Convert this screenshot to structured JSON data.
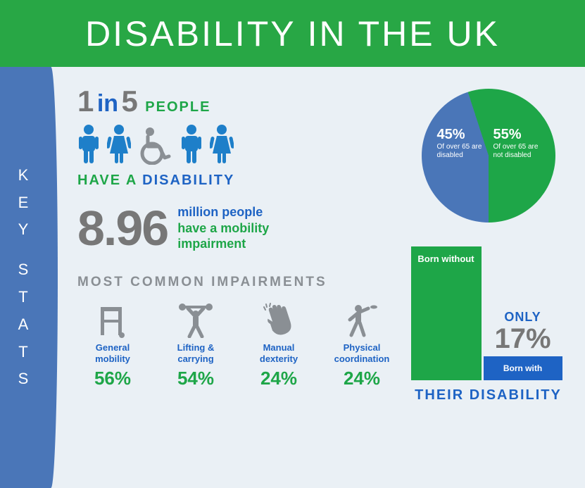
{
  "header": {
    "title": "DISABILITY IN THE UK",
    "bg_color": "#28a745",
    "text_color": "#ffffff",
    "fontsize": 50
  },
  "sidebar": {
    "label": "KEY STATS",
    "letters": [
      "K",
      "E",
      "Y",
      "",
      "S",
      "T",
      "A",
      "T",
      "S"
    ],
    "bg_color": "#4a76b8",
    "text_color": "#ffffff"
  },
  "body_bg": "#eaf0f5",
  "one_in_five": {
    "one": "1",
    "in": "in",
    "five": "5",
    "people": "PEOPLE",
    "have_a": "HAVE A",
    "disability": "DISABILITY",
    "colors": {
      "num": "#777777",
      "in": "#1e63c4",
      "green": "#1ea648",
      "blue": "#1e63c4"
    },
    "icons": [
      {
        "type": "male",
        "color": "#1e7fc9"
      },
      {
        "type": "female",
        "color": "#1e7fc9"
      },
      {
        "type": "wheelchair",
        "color": "#8a8f94"
      },
      {
        "type": "male",
        "color": "#1e7fc9"
      },
      {
        "type": "female",
        "color": "#1e7fc9"
      }
    ]
  },
  "mobility": {
    "number": "8.96",
    "line1": "million people",
    "line2": "have a mobility",
    "line3": "impairment",
    "number_color": "#777777",
    "blue": "#1e63c4",
    "green": "#1ea648",
    "number_fontsize": 70
  },
  "impairments": {
    "title": "MOST COMMON IMPAIRMENTS",
    "title_color": "#8a8f94",
    "label_color": "#1e63c4",
    "pct_color": "#1ea648",
    "icon_color": "#8a8f94",
    "items": [
      {
        "icon": "walker",
        "label": "General mobility",
        "pct": "56%"
      },
      {
        "icon": "lifting",
        "label": "Lifting & carrying",
        "pct": "54%"
      },
      {
        "icon": "hand",
        "label": "Manual dexterity",
        "pct": "24%"
      },
      {
        "icon": "throw",
        "label": "Physical coordination",
        "pct": "24%"
      }
    ]
  },
  "pie": {
    "type": "pie",
    "slices": [
      {
        "pct": 45,
        "label_pct": "45%",
        "label_text": "Of over 65 are disabled",
        "color": "#4a76b8"
      },
      {
        "pct": 55,
        "label_pct": "55%",
        "label_text": "Of over 65 are not disabled",
        "color": "#1ea648"
      }
    ],
    "diameter": 190
  },
  "born": {
    "type": "bar",
    "without": {
      "label": "Born without",
      "value": 83,
      "color": "#1ea648",
      "height": 190
    },
    "with": {
      "label": "Born with",
      "value": 17,
      "color": "#1e63c4",
      "height": 34
    },
    "only": "ONLY",
    "only_pct": "17%",
    "only_color": "#1e63c4",
    "pct_color": "#777777",
    "footer": "THEIR DISABILITY",
    "footer_color": "#1e63c4"
  }
}
